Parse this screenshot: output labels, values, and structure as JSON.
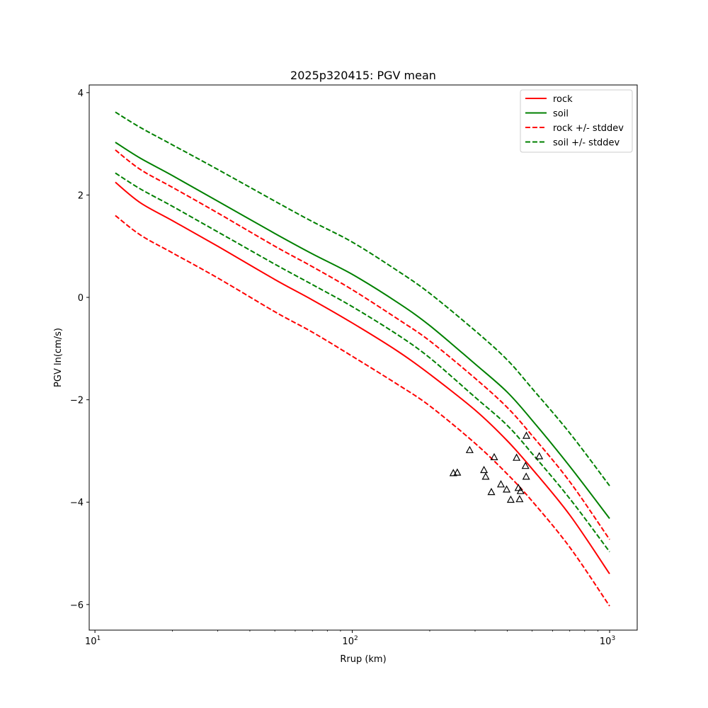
{
  "chart_data": {
    "type": "line",
    "title": "2025p320415: PGV mean",
    "xlabel": "Rrup (km)",
    "ylabel": "PGV ln(cm/s)",
    "xscale": "log",
    "xlim": [
      9.5,
      1280
    ],
    "ylim": [
      -6.5,
      4.15
    ],
    "xticks": [
      {
        "value": 10,
        "label": "10",
        "exp": "1"
      },
      {
        "value": 100,
        "label": "10",
        "exp": "2"
      },
      {
        "value": 1000,
        "label": "10",
        "exp": "3"
      }
    ],
    "yticks": [
      {
        "value": 4,
        "label": "4"
      },
      {
        "value": 2,
        "label": "2"
      },
      {
        "value": 0,
        "label": "0"
      },
      {
        "value": -2,
        "label": "−2"
      },
      {
        "value": -4,
        "label": "−4"
      },
      {
        "value": -6,
        "label": "−6"
      }
    ],
    "grid": false,
    "legend_position": "top-right",
    "series": [
      {
        "name": "rock",
        "color": "#ff0000",
        "style": "solid",
        "x": [
          12,
          15,
          20,
          30,
          50,
          70,
          100,
          150,
          200,
          300,
          400,
          500,
          700,
          1000
        ],
        "y": [
          2.25,
          1.85,
          1.5,
          1.0,
          0.35,
          -0.05,
          -0.5,
          -1.05,
          -1.5,
          -2.2,
          -2.8,
          -3.35,
          -4.25,
          -5.4
        ]
      },
      {
        "name": "soil",
        "color": "#008000",
        "style": "solid",
        "x": [
          12,
          15,
          20,
          30,
          50,
          70,
          100,
          150,
          200,
          300,
          400,
          500,
          700,
          1000
        ],
        "y": [
          3.03,
          2.72,
          2.38,
          1.88,
          1.25,
          0.85,
          0.45,
          -0.1,
          -0.55,
          -1.3,
          -1.85,
          -2.4,
          -3.3,
          -4.32
        ]
      },
      {
        "name": "rock +/- stddev",
        "color": "#ff0000",
        "style": "dashed",
        "x": [
          12,
          15,
          20,
          30,
          50,
          70,
          100,
          150,
          200,
          300,
          400,
          500,
          700,
          1000
        ],
        "y": [
          2.88,
          2.5,
          2.15,
          1.65,
          1.0,
          0.6,
          0.15,
          -0.42,
          -0.85,
          -1.58,
          -2.15,
          -2.7,
          -3.6,
          -4.73
        ]
      },
      {
        "name": "",
        "color": "#ff0000",
        "style": "dashed",
        "x": [
          12,
          15,
          20,
          30,
          50,
          70,
          100,
          150,
          200,
          300,
          400,
          500,
          700,
          1000
        ],
        "y": [
          1.6,
          1.22,
          0.87,
          0.38,
          -0.28,
          -0.68,
          -1.15,
          -1.7,
          -2.12,
          -2.85,
          -3.45,
          -3.98,
          -4.88,
          -6.03
        ]
      },
      {
        "name": "soil +/- stddev",
        "color": "#008000",
        "style": "dashed",
        "x": [
          12,
          15,
          20,
          30,
          50,
          70,
          100,
          150,
          200,
          300,
          400,
          500,
          700,
          1000
        ],
        "y": [
          3.62,
          3.32,
          2.98,
          2.5,
          1.88,
          1.48,
          1.08,
          0.52,
          0.08,
          -0.65,
          -1.22,
          -1.78,
          -2.65,
          -3.68
        ]
      },
      {
        "name": "",
        "color": "#008000",
        "style": "dashed",
        "x": [
          12,
          15,
          20,
          30,
          50,
          70,
          100,
          150,
          200,
          300,
          400,
          500,
          700,
          1000
        ],
        "y": [
          2.43,
          2.12,
          1.78,
          1.28,
          0.65,
          0.25,
          -0.18,
          -0.73,
          -1.18,
          -1.95,
          -2.5,
          -3.05,
          -3.93,
          -4.97
        ]
      }
    ],
    "observations": {
      "marker": "triangle-open",
      "color": "#000000",
      "points": [
        [
          247,
          -3.43
        ],
        [
          256,
          -3.42
        ],
        [
          286,
          -2.98
        ],
        [
          325,
          -3.37
        ],
        [
          330,
          -3.5
        ],
        [
          347,
          -3.8
        ],
        [
          356,
          -3.12
        ],
        [
          378,
          -3.65
        ],
        [
          398,
          -3.75
        ],
        [
          413,
          -3.95
        ],
        [
          435,
          -3.13
        ],
        [
          442,
          -3.72
        ],
        [
          447,
          -3.94
        ],
        [
          451,
          -3.78
        ],
        [
          471,
          -3.29
        ],
        [
          474,
          -3.5
        ],
        [
          475,
          -2.7
        ],
        [
          533,
          -3.1
        ]
      ]
    }
  }
}
